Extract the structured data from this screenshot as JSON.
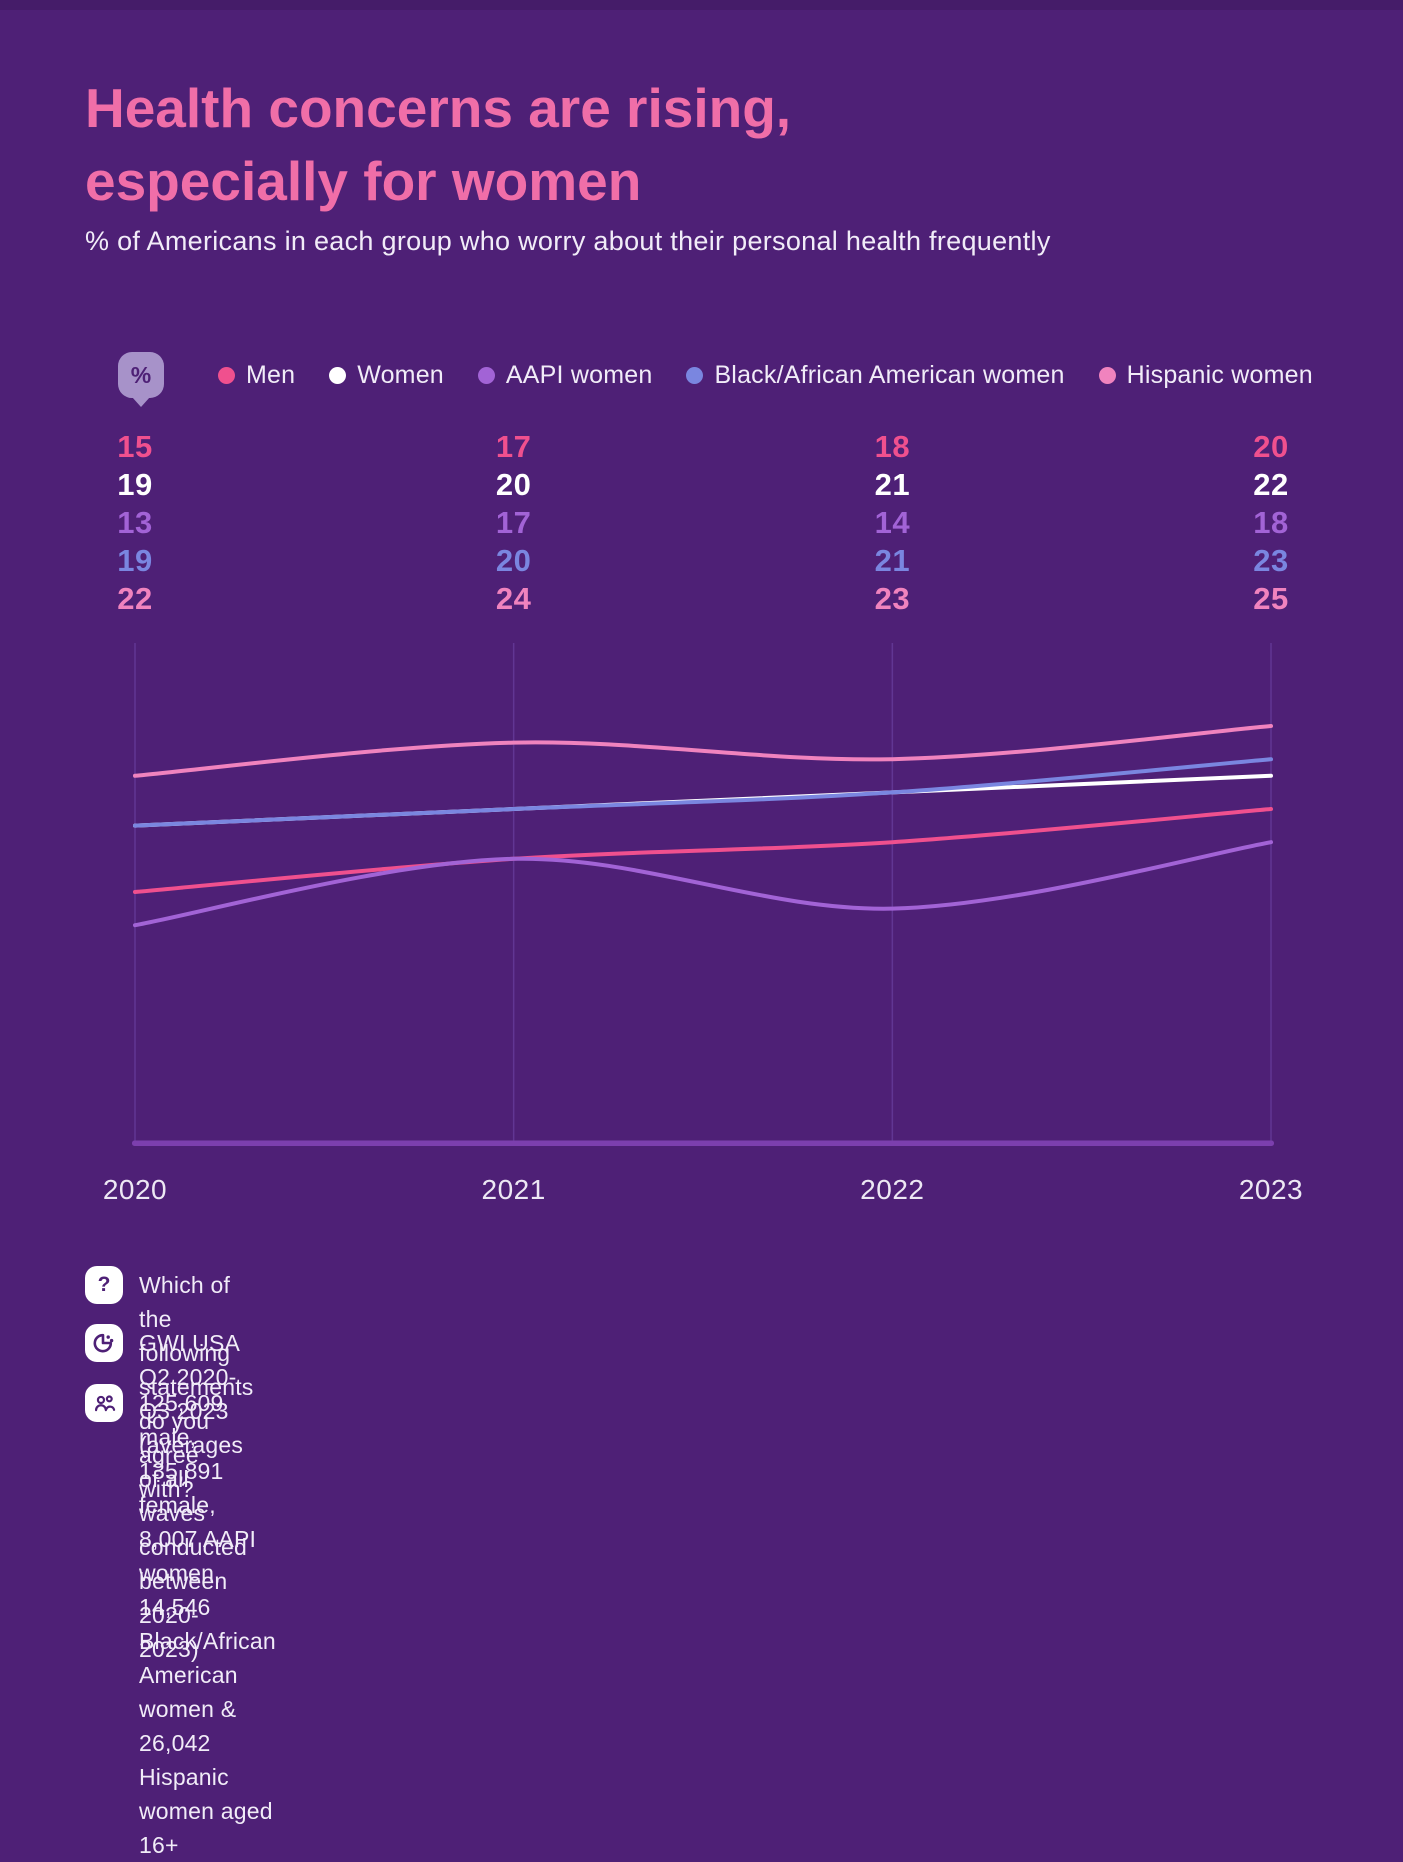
{
  "page": {
    "background": "#4E2076",
    "top_strip_color": "#451C69"
  },
  "header": {
    "title_line1": "Health concerns are rising,",
    "title_line2": "especially for women",
    "title_color": "#F06EA8",
    "subtitle": "% of Americans in each group who worry about their personal health frequently"
  },
  "legend": {
    "percent_badge": "%",
    "items": [
      {
        "label": "Men",
        "color": "#F0508E"
      },
      {
        "label": "Women",
        "color": "#FFFFFF"
      },
      {
        "label": "AAPI women",
        "color": "#A263D6"
      },
      {
        "label": "Black/African American women",
        "color": "#7A86E0"
      },
      {
        "label": "Hispanic women",
        "color": "#F083BE"
      }
    ]
  },
  "chart_data": {
    "type": "line",
    "title": "Health concerns are rising, especially for women",
    "subtitle": "% of Americans in each group who worry about their personal health frequently",
    "categories": [
      "2020",
      "2021",
      "2022",
      "2023"
    ],
    "series": [
      {
        "name": "Men",
        "color": "#F0508E",
        "values": [
          15,
          17,
          18,
          20
        ]
      },
      {
        "name": "Women",
        "color": "#FFFFFF",
        "values": [
          19,
          20,
          21,
          22
        ]
      },
      {
        "name": "AAPI women",
        "color": "#A263D6",
        "values": [
          13,
          17,
          14,
          18
        ]
      },
      {
        "name": "Black/African American women",
        "color": "#7A86E0",
        "values": [
          19,
          20,
          21,
          23
        ]
      },
      {
        "name": "Hispanic women",
        "color": "#F083BE",
        "values": [
          22,
          24,
          23,
          25
        ]
      }
    ],
    "ylim": [
      0,
      30
    ],
    "grid": "vertical-per-year",
    "grid_color": "#613693",
    "axis_color": "#7C3FAE",
    "legend_position": "top",
    "value_labels_position": "above-chart"
  },
  "footnotes": [
    {
      "icon": "question-icon",
      "text": "Which of the following statements do you agree with?"
    },
    {
      "icon": "gwi-logo-icon",
      "text": "GWI USA Q2 2020-Q3 2023 (averages of all waves conducted between 2020-2023)"
    },
    {
      "icon": "people-icon",
      "text": "125,609 male, 135,891 female, 8,007 AAPI women, 14,546 Black/African American women & 26,042 Hispanic women aged 16+"
    }
  ]
}
